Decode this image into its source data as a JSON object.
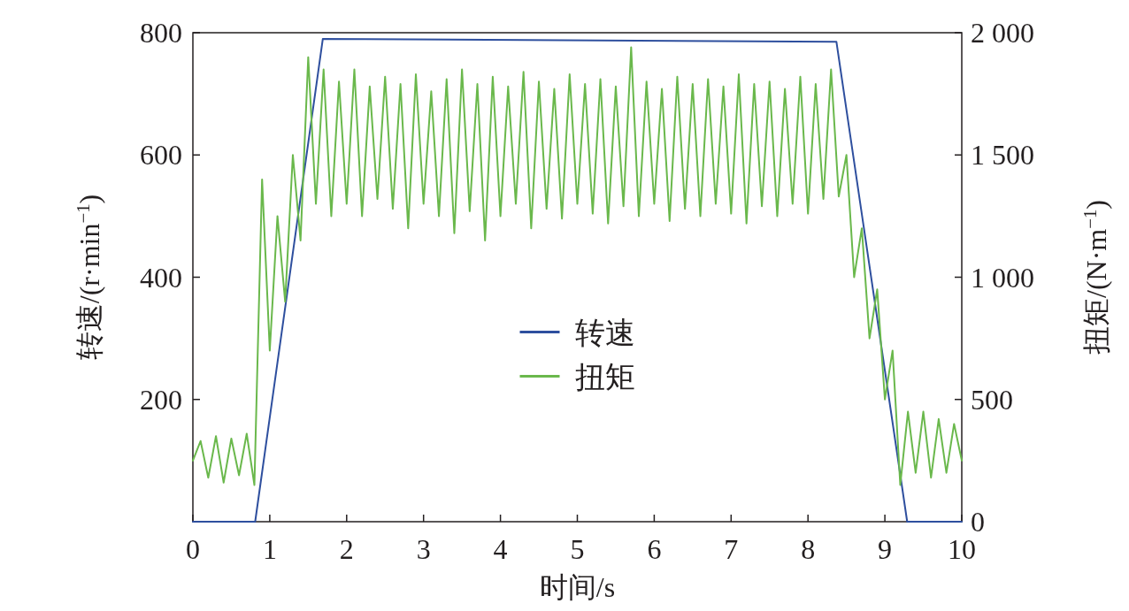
{
  "chart_data": {
    "type": "line",
    "xlabel": "时间/s",
    "ylabel": "转速/(r·min$^{−1}$)",
    "y2label": "扭矩/(N·m$^{−1}$)",
    "xlim": [
      0,
      10
    ],
    "xticks": [
      0,
      1,
      2,
      3,
      4,
      5,
      6,
      7,
      8,
      9,
      10
    ],
    "ylim": [
      0,
      800
    ],
    "yticks": [
      200,
      400,
      600,
      800
    ],
    "y2lim": [
      0,
      2000
    ],
    "y2ticks": [
      0,
      500,
      {
        "value": 1000,
        "label": "1 000"
      },
      {
        "value": 1500,
        "label": "1 500"
      },
      {
        "value": 2000,
        "label": "2 000"
      }
    ],
    "grid": false,
    "legend": "center",
    "marker": "none",
    "line_style": "solid",
    "series": [
      {
        "name": "转速",
        "color": "#2e4f9e",
        "x": [
          0,
          0.81,
          1.69,
          8.37,
          9.29,
          10
        ],
        "values": [
          0,
          0,
          790,
          785,
          0,
          0
        ]
      },
      {
        "name": "扭矩",
        "color": "#6ab84c",
        "axis": "y2",
        "x": [
          0,
          0.1,
          0.2,
          0.3,
          0.4,
          0.5,
          0.6,
          0.7,
          0.8,
          0.9,
          1.0,
          1.1,
          1.2,
          1.3,
          1.4,
          1.5,
          1.6,
          1.7,
          1.8,
          1.9,
          2.0,
          2.1,
          2.2,
          2.3,
          2.4,
          2.5,
          2.6,
          2.7,
          2.8,
          2.9,
          3.0,
          3.1,
          3.2,
          3.3,
          3.4,
          3.5,
          3.6,
          3.7,
          3.8,
          3.9,
          4.0,
          4.1,
          4.2,
          4.3,
          4.4,
          4.5,
          4.6,
          4.7,
          4.8,
          4.9,
          5.0,
          5.1,
          5.2,
          5.3,
          5.4,
          5.5,
          5.6,
          5.7,
          5.8,
          5.9,
          6.0,
          6.1,
          6.2,
          6.3,
          6.4,
          6.5,
          6.6,
          6.7,
          6.8,
          6.9,
          7.0,
          7.1,
          7.2,
          7.3,
          7.4,
          7.5,
          7.6,
          7.7,
          7.8,
          7.9,
          8.0,
          8.1,
          8.2,
          8.3,
          8.4,
          8.5,
          8.6,
          8.7,
          8.8,
          8.9,
          9.0,
          9.1,
          9.2,
          9.3,
          9.4,
          9.5,
          9.6,
          9.7,
          9.8,
          9.9,
          10.0
        ],
        "values": [
          250,
          330,
          180,
          350,
          160,
          340,
          190,
          360,
          150,
          1400,
          700,
          1250,
          900,
          1500,
          1150,
          1900,
          1300,
          1850,
          1250,
          1800,
          1300,
          1850,
          1250,
          1780,
          1320,
          1820,
          1280,
          1790,
          1200,
          1830,
          1300,
          1760,
          1250,
          1810,
          1180,
          1850,
          1270,
          1790,
          1150,
          1820,
          1250,
          1780,
          1300,
          1840,
          1200,
          1800,
          1280,
          1770,
          1240,
          1830,
          1300,
          1790,
          1260,
          1810,
          1220,
          1780,
          1290,
          1940,
          1250,
          1800,
          1300,
          1770,
          1230,
          1820,
          1280,
          1790,
          1250,
          1810,
          1300,
          1780,
          1260,
          1830,
          1220,
          1790,
          1290,
          1800,
          1250,
          1770,
          1300,
          1820,
          1260,
          1790,
          1320,
          1850,
          1330,
          1500,
          1000,
          1200,
          750,
          950,
          500,
          700,
          150,
          450,
          200,
          450,
          180,
          420,
          200,
          400,
          250
        ]
      }
    ]
  }
}
